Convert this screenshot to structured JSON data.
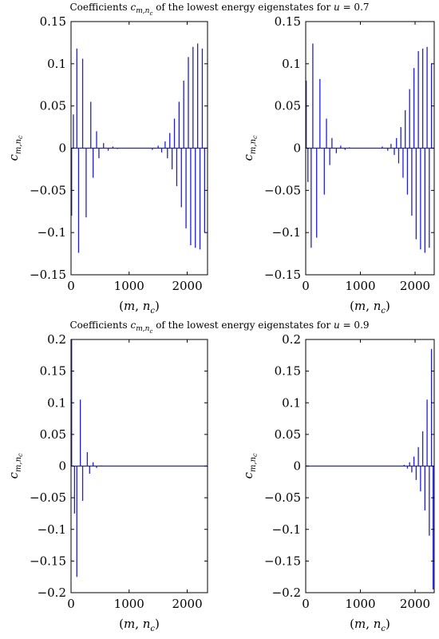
{
  "titles": {
    "top": "Coefficients c_{m,n_c} of the lowest energy eigenstates for u = 0.7",
    "bottom": "Coefficients c_{m,n_c} of the lowest energy eigenstates for u = 0.9"
  },
  "colors": {
    "series": "#1f1fd6",
    "axes": "#000000"
  },
  "chart_data": [
    {
      "type": "line",
      "xlabel": "(m, n_c)",
      "ylabel": "c_{m,n_c}",
      "xlim": [
        0,
        2350
      ],
      "ylim": [
        -0.15,
        0.15
      ],
      "xticks": [
        0,
        1000,
        2000
      ],
      "yticks": [
        -0.15,
        -0.1,
        -0.05,
        0,
        0.05,
        0.1,
        0.15
      ],
      "ytick_labels": [
        "−0.15",
        "−0.1",
        "−0.05",
        "0",
        "0.05",
        "0.1",
        "0.15"
      ],
      "spikes": {
        "x": [
          10,
          40,
          100,
          130,
          200,
          260,
          340,
          380,
          440,
          480,
          560,
          640,
          720,
          800,
          1400,
          1500,
          1560,
          1620,
          1660,
          1700,
          1740,
          1780,
          1820,
          1860,
          1900,
          1940,
          1980,
          2020,
          2060,
          2100,
          2140,
          2180,
          2220,
          2260,
          2300
        ],
        "y": [
          -0.08,
          0.04,
          0.118,
          -0.124,
          0.106,
          -0.082,
          0.055,
          -0.035,
          0.02,
          -0.012,
          0.006,
          -0.003,
          0.002,
          -0.001,
          -0.002,
          0.003,
          -0.005,
          0.008,
          -0.012,
          0.018,
          -0.025,
          0.035,
          -0.045,
          0.055,
          -0.07,
          0.08,
          -0.095,
          0.108,
          -0.115,
          0.12,
          -0.118,
          0.124,
          -0.12,
          0.118,
          -0.1
        ]
      }
    },
    {
      "type": "line",
      "xlabel": "(m, n_c)",
      "ylabel": "c_{m,n_c}",
      "xlim": [
        0,
        2350
      ],
      "ylim": [
        -0.15,
        0.15
      ],
      "xticks": [
        0,
        1000,
        2000
      ],
      "yticks": [
        -0.15,
        -0.1,
        -0.05,
        0,
        0.05,
        0.1,
        0.15
      ],
      "ytick_labels": [
        "−0.15",
        "−0.1",
        "−0.05",
        "0",
        "0.05",
        "0.1",
        "0.15"
      ],
      "spikes": {
        "x": [
          10,
          40,
          100,
          130,
          200,
          260,
          340,
          380,
          440,
          480,
          560,
          640,
          720,
          800,
          1400,
          1500,
          1560,
          1620,
          1660,
          1700,
          1740,
          1780,
          1820,
          1860,
          1900,
          1940,
          1980,
          2020,
          2060,
          2100,
          2140,
          2180,
          2220,
          2260,
          2300
        ],
        "y": [
          0.08,
          -0.04,
          -0.118,
          0.124,
          -0.106,
          0.082,
          -0.055,
          0.035,
          -0.02,
          0.012,
          -0.006,
          0.003,
          -0.002,
          0.001,
          0.002,
          -0.003,
          0.005,
          -0.008,
          0.012,
          -0.018,
          0.025,
          -0.035,
          0.045,
          -0.055,
          0.07,
          -0.08,
          0.095,
          -0.108,
          0.115,
          -0.12,
          0.118,
          -0.124,
          0.12,
          -0.118,
          0.1
        ]
      }
    },
    {
      "type": "line",
      "xlabel": "(m, n_c)",
      "ylabel": "c_{m,n_c}",
      "xlim": [
        0,
        2350
      ],
      "ylim": [
        -0.2,
        0.2
      ],
      "xticks": [
        0,
        1000,
        2000
      ],
      "yticks": [
        -0.2,
        -0.15,
        -0.1,
        -0.05,
        0,
        0.05,
        0.1,
        0.15,
        0.2
      ],
      "ytick_labels": [
        "−0.2",
        "−0.15",
        "−0.1",
        "−0.05",
        "0",
        "0.05",
        "0.1",
        "0.15",
        "0.2"
      ],
      "spikes": {
        "x": [
          10,
          60,
          100,
          160,
          200,
          280,
          320,
          380,
          440,
          520,
          600
        ],
        "y": [
          0.2,
          -0.075,
          -0.175,
          0.105,
          -0.055,
          0.022,
          -0.012,
          0.006,
          -0.003,
          0.001,
          -0.0005
        ]
      }
    },
    {
      "type": "line",
      "xlabel": "(m, n_c)",
      "ylabel": "c_{m,n_c}",
      "xlim": [
        0,
        2350
      ],
      "ylim": [
        -0.2,
        0.2
      ],
      "xticks": [
        0,
        1000,
        2000
      ],
      "yticks": [
        -0.2,
        -0.15,
        -0.1,
        -0.05,
        0,
        0.05,
        0.1,
        0.15,
        0.2
      ],
      "ytick_labels": [
        "−0.2",
        "−0.15",
        "−0.1",
        "−0.05",
        "0",
        "0.05",
        "0.1",
        "0.15",
        "0.2"
      ],
      "spikes": {
        "x": [
          1800,
          1860,
          1900,
          1940,
          1980,
          2020,
          2060,
          2100,
          2140,
          2180,
          2220,
          2260,
          2300,
          2330
        ],
        "y": [
          0.002,
          -0.004,
          0.006,
          -0.01,
          0.015,
          -0.022,
          0.03,
          -0.04,
          0.055,
          -0.07,
          0.105,
          -0.11,
          0.185,
          -0.195
        ]
      }
    }
  ]
}
